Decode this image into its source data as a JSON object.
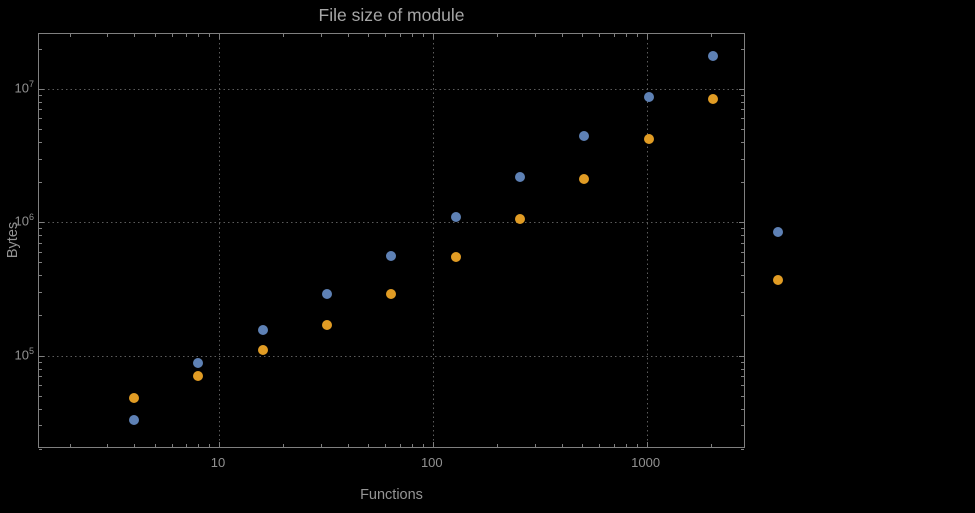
{
  "chart_data": {
    "type": "scatter",
    "title": "File size of module",
    "xlabel": "Functions",
    "ylabel": "Bytes",
    "x_scale": "log",
    "y_scale": "log",
    "grid": "dotted",
    "legend": "none",
    "xlim": [
      1.44,
      2900
    ],
    "ylim": [
      20000,
      26000000
    ],
    "xlog_range": [
      0.158,
      3.465
    ],
    "ylog_range": [
      4.3,
      7.41
    ],
    "x": [
      4,
      8,
      16,
      32,
      64,
      128,
      256,
      512,
      1024,
      2048,
      4096
    ],
    "series": [
      {
        "name": "series-1",
        "color": "#5E81B5",
        "values": [
          33000,
          88000,
          155000,
          290000,
          560000,
          1100000,
          2200000,
          4400000,
          8700000,
          17500000,
          850000
        ]
      },
      {
        "name": "series-2",
        "color": "#E19C24",
        "values": [
          48000,
          70000,
          110000,
          170000,
          290000,
          550000,
          1050000,
          2100000,
          4200000,
          8400000,
          370000
        ]
      }
    ],
    "x_ticks": [
      {
        "v": 10,
        "label": "10"
      },
      {
        "v": 100,
        "label": "100"
      },
      {
        "v": 1000,
        "label": "1000"
      }
    ],
    "y_ticks": [
      {
        "v": 100000,
        "base": "10",
        "exp": "5"
      },
      {
        "v": 1000000,
        "base": "10",
        "exp": "6"
      },
      {
        "v": 10000000,
        "base": "10",
        "exp": "7"
      }
    ],
    "colors": {
      "background": "#000000",
      "frame": "#7f7f7f",
      "grid": "#5c5c5c",
      "text": "#919191",
      "title": "#a6a6a6"
    }
  }
}
